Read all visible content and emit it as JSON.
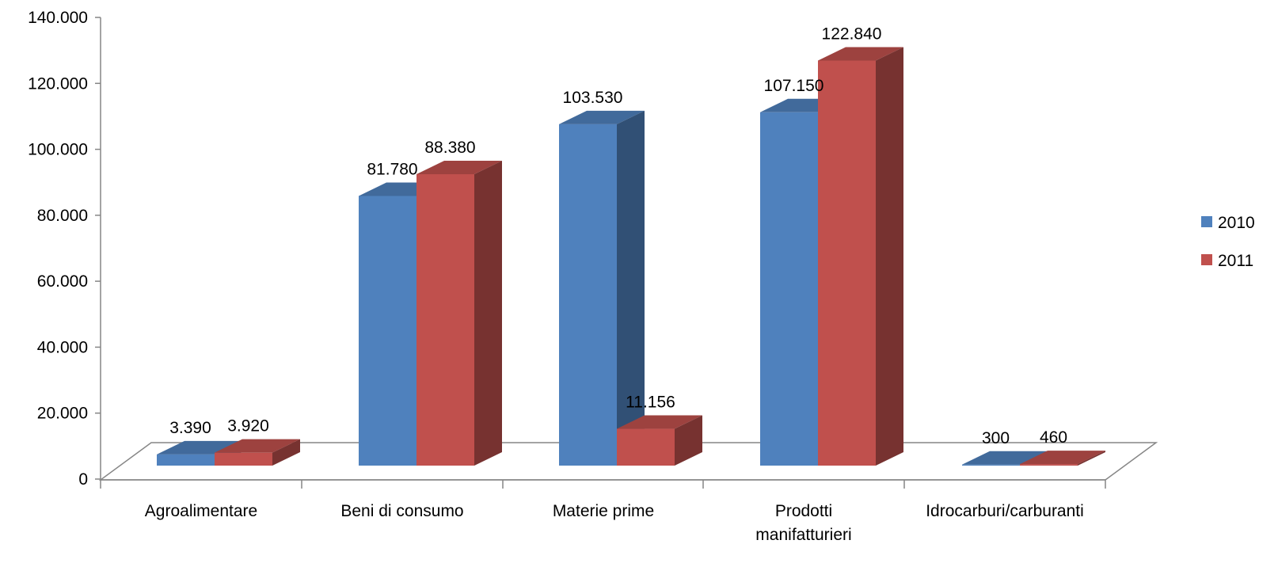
{
  "chart_data": {
    "type": "bar",
    "categories": [
      "Agroalimentare",
      "Beni di consumo",
      "Materie prime",
      "Prodotti manifatturieri",
      "Idrocarburi/carburanti"
    ],
    "category_lines": [
      [
        "Agroalimentare"
      ],
      [
        "Beni di consumo"
      ],
      [
        "Materie prime"
      ],
      [
        "Prodotti",
        "manifatturieri"
      ],
      [
        "Idrocarburi/carburanti"
      ]
    ],
    "series": [
      {
        "name": "2010",
        "values": [
          3390,
          81780,
          103530,
          107150,
          300
        ],
        "labels": [
          "3.390",
          "81.780",
          "103.530",
          "107.150",
          "300"
        ],
        "color": "#4f81bd"
      },
      {
        "name": "2011",
        "values": [
          3920,
          88380,
          11156,
          122840,
          460
        ],
        "labels": [
          "3.920",
          "88.380",
          "11.156",
          "122.840",
          "460"
        ],
        "color": "#c0504d"
      }
    ],
    "ylim": [
      0,
      140000
    ],
    "yticks": [
      0,
      20000,
      40000,
      60000,
      80000,
      100000,
      120000,
      140000
    ],
    "ytick_labels": [
      "0",
      "20.000",
      "40.000",
      "60.000",
      "80.000",
      "100.000",
      "120.000",
      "140.000"
    ],
    "style": "3d-clustered-column",
    "legend_position": "right",
    "grid": false
  }
}
